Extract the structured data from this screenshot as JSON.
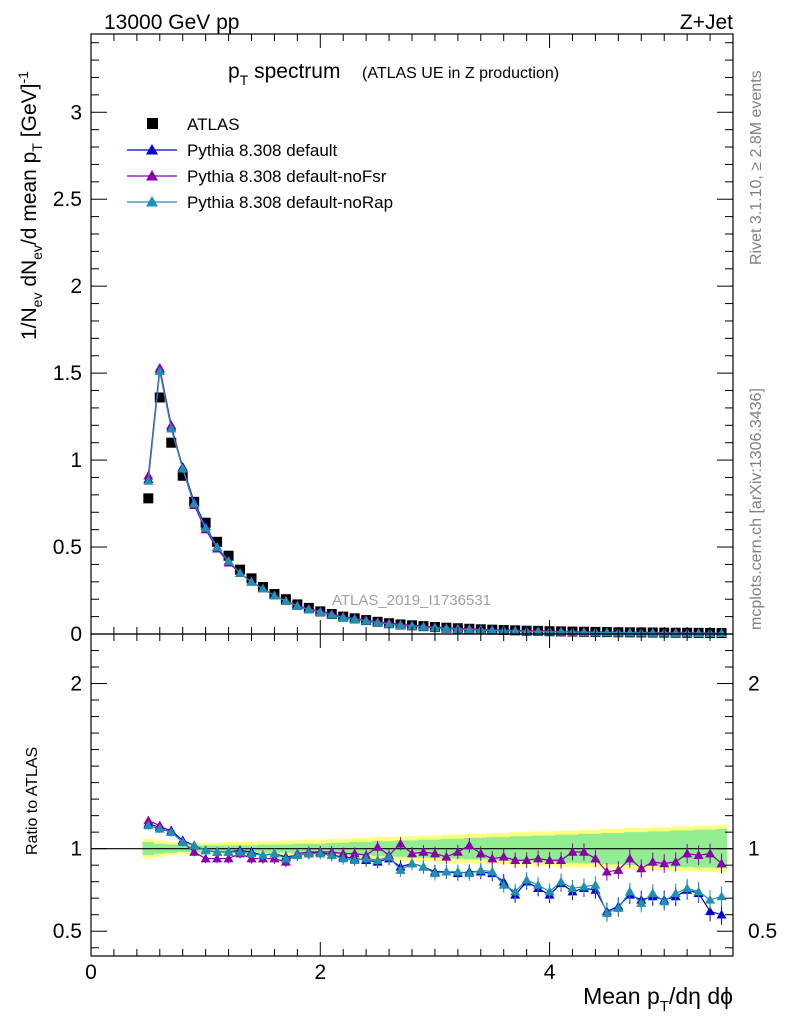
{
  "header": {
    "left": "13000 GeV pp",
    "right": "Z+Jet"
  },
  "side_labels": {
    "rivet": "Rivet 3.1.10, ≥ 2.8M events",
    "mcplots": "mcplots.cern.ch [arXiv:1306.3436]"
  },
  "chart_data": {
    "type": "scatter",
    "title_main": "p",
    "title_main_sub": "T",
    "title_main_rest": " spectrum",
    "title_sub": "(ATLAS UE in Z production)",
    "watermark": "ATLAS_2019_I1736531",
    "xlabel_parts": [
      "Mean p",
      "T",
      "/dη dϕ"
    ],
    "ylabel_parts": [
      "1/N",
      "ev",
      " dN",
      "ev",
      "/d mean p",
      "T",
      " [GeV]",
      "-1"
    ],
    "ratio_ylabel": "Ratio to ATLAS",
    "xlim": [
      0,
      5.6
    ],
    "ylim": [
      0,
      3.45
    ],
    "ratio_ylim": [
      0.35,
      2.3
    ],
    "x_ticks": [
      "0",
      "2",
      "4"
    ],
    "y_ticks": [
      "0",
      "0.5",
      "1",
      "1.5",
      "2",
      "2.5",
      "3"
    ],
    "ratio_y_ticks": [
      "0.5",
      "1",
      "2"
    ],
    "legend_position": "top-left",
    "x": [
      0.5,
      0.6,
      0.7,
      0.8,
      0.9,
      1.0,
      1.1,
      1.2,
      1.3,
      1.4,
      1.5,
      1.6,
      1.7,
      1.8,
      1.9,
      2.0,
      2.1,
      2.2,
      2.3,
      2.4,
      2.5,
      2.6,
      2.7,
      2.8,
      2.9,
      3.0,
      3.1,
      3.2,
      3.3,
      3.4,
      3.5,
      3.6,
      3.7,
      3.8,
      3.9,
      4.0,
      4.1,
      4.2,
      4.3,
      4.4,
      4.5,
      4.6,
      4.7,
      4.8,
      4.9,
      5.0,
      5.1,
      5.2,
      5.3,
      5.4,
      5.5
    ],
    "series": [
      {
        "name": "ATLAS",
        "color": "#000000",
        "marker": "square",
        "values": [
          0.78,
          1.36,
          1.1,
          0.91,
          0.76,
          0.64,
          0.53,
          0.45,
          0.37,
          0.32,
          0.27,
          0.23,
          0.2,
          0.17,
          0.15,
          0.13,
          0.115,
          0.1,
          0.09,
          0.08,
          0.07,
          0.062,
          0.055,
          0.05,
          0.045,
          0.04,
          0.036,
          0.033,
          0.03,
          0.027,
          0.025,
          0.023,
          0.021,
          0.019,
          0.018,
          0.016,
          0.015,
          0.014,
          0.013,
          0.012,
          0.011,
          0.01,
          0.0095,
          0.009,
          0.0085,
          0.008,
          0.0075,
          0.007,
          0.0065,
          0.006,
          0.0055
        ],
        "ratio": []
      },
      {
        "name": "Pythia 8.308 default",
        "color": "#0000cc",
        "marker": "triangle",
        "values": [
          0.89,
          1.52,
          1.19,
          0.96,
          0.76,
          0.62,
          0.5,
          0.42,
          0.35,
          0.3,
          0.26,
          0.22,
          0.19,
          0.16,
          0.14,
          0.125,
          0.11,
          0.095,
          0.085,
          0.075,
          0.065,
          0.057,
          0.05,
          0.045,
          0.04,
          0.035,
          0.031,
          0.028,
          0.026,
          0.023,
          0.021,
          0.019,
          0.017,
          0.015,
          0.014,
          0.013,
          0.012,
          0.011,
          0.01,
          0.009,
          0.008,
          0.0075,
          0.007,
          0.0065,
          0.006,
          0.0055,
          0.005,
          0.0048,
          0.0045,
          0.0042,
          0.004
        ],
        "ratio": [
          1.15,
          1.13,
          1.11,
          1.05,
          1.02,
          0.99,
          0.98,
          0.98,
          0.99,
          0.98,
          0.96,
          0.97,
          0.95,
          0.96,
          0.97,
          0.98,
          0.96,
          0.95,
          0.94,
          0.93,
          0.92,
          0.94,
          0.89,
          0.91,
          0.89,
          0.86,
          0.86,
          0.85,
          0.86,
          0.86,
          0.85,
          0.8,
          0.72,
          0.8,
          0.76,
          0.72,
          0.79,
          0.74,
          0.76,
          0.75,
          0.62,
          0.65,
          0.72,
          0.69,
          0.71,
          0.69,
          0.71,
          0.75,
          0.73,
          0.62,
          0.6
        ]
      },
      {
        "name": "Pythia 8.308 default-noFsr",
        "color": "#8800aa",
        "marker": "triangle",
        "values": [
          0.91,
          1.53,
          1.2,
          0.95,
          0.74,
          0.6,
          0.49,
          0.41,
          0.35,
          0.3,
          0.26,
          0.22,
          0.19,
          0.165,
          0.145,
          0.13,
          0.115,
          0.1,
          0.09,
          0.08,
          0.07,
          0.063,
          0.056,
          0.05,
          0.045,
          0.04,
          0.036,
          0.033,
          0.03,
          0.027,
          0.025,
          0.023,
          0.021,
          0.019,
          0.018,
          0.016,
          0.015,
          0.014,
          0.013,
          0.012,
          0.011,
          0.01,
          0.0095,
          0.009,
          0.0085,
          0.008,
          0.0075,
          0.007,
          0.0065,
          0.006,
          0.0055
        ],
        "ratio": [
          1.17,
          1.14,
          1.1,
          1.04,
          0.98,
          0.94,
          0.94,
          0.94,
          0.97,
          0.94,
          0.94,
          0.94,
          0.92,
          0.97,
          0.98,
          0.98,
          0.98,
          0.97,
          0.97,
          0.96,
          1.01,
          0.96,
          1.03,
          0.97,
          0.98,
          0.97,
          0.95,
          0.98,
          1.02,
          0.97,
          0.94,
          0.95,
          0.93,
          0.93,
          0.94,
          0.93,
          0.93,
          0.98,
          0.98,
          0.94,
          0.86,
          0.87,
          0.94,
          0.88,
          0.92,
          0.91,
          0.92,
          0.97,
          0.96,
          0.97,
          0.91
        ]
      },
      {
        "name": "Pythia 8.308 default-noRap",
        "color": "#2090b0",
        "marker": "triangle",
        "values": [
          0.88,
          1.51,
          1.18,
          0.95,
          0.75,
          0.61,
          0.5,
          0.42,
          0.35,
          0.3,
          0.26,
          0.22,
          0.19,
          0.16,
          0.14,
          0.125,
          0.11,
          0.095,
          0.085,
          0.075,
          0.065,
          0.057,
          0.05,
          0.045,
          0.04,
          0.035,
          0.031,
          0.028,
          0.026,
          0.023,
          0.021,
          0.019,
          0.017,
          0.015,
          0.014,
          0.013,
          0.012,
          0.011,
          0.01,
          0.009,
          0.008,
          0.0075,
          0.007,
          0.0065,
          0.006,
          0.0055,
          0.005,
          0.0048,
          0.0045,
          0.0042,
          0.004
        ],
        "ratio": [
          1.14,
          1.12,
          1.1,
          1.04,
          1.02,
          0.99,
          0.98,
          0.98,
          0.98,
          0.97,
          0.96,
          0.97,
          0.94,
          0.96,
          0.97,
          0.97,
          0.96,
          0.94,
          0.93,
          0.94,
          0.93,
          0.95,
          0.87,
          0.91,
          0.89,
          0.85,
          0.86,
          0.86,
          0.85,
          0.87,
          0.86,
          0.78,
          0.74,
          0.81,
          0.78,
          0.74,
          0.8,
          0.76,
          0.77,
          0.78,
          0.61,
          0.64,
          0.74,
          0.67,
          0.73,
          0.68,
          0.73,
          0.76,
          0.74,
          0.69,
          0.71
        ]
      }
    ],
    "band_inner": {
      "color": "#90ee90",
      "halfwidth": [
        0.04,
        0.03,
        0.025,
        0.02,
        0.02,
        0.02,
        0.02,
        0.02,
        0.02,
        0.02,
        0.025,
        0.025,
        0.025,
        0.03,
        0.03,
        0.03,
        0.035,
        0.035,
        0.04,
        0.04,
        0.045,
        0.045,
        0.05,
        0.05,
        0.055,
        0.055,
        0.06,
        0.06,
        0.065,
        0.065,
        0.07,
        0.07,
        0.075,
        0.075,
        0.08,
        0.08,
        0.085,
        0.085,
        0.09,
        0.09,
        0.095,
        0.095,
        0.1,
        0.1,
        0.105,
        0.105,
        0.11,
        0.11,
        0.115,
        0.115,
        0.12
      ]
    },
    "band_outer": {
      "color": "#ffff80",
      "halfwidth": [
        0.06,
        0.05,
        0.04,
        0.035,
        0.035,
        0.035,
        0.035,
        0.04,
        0.04,
        0.04,
        0.045,
        0.045,
        0.05,
        0.05,
        0.055,
        0.055,
        0.06,
        0.06,
        0.065,
        0.065,
        0.07,
        0.07,
        0.075,
        0.075,
        0.08,
        0.08,
        0.085,
        0.085,
        0.09,
        0.09,
        0.095,
        0.095,
        0.1,
        0.1,
        0.105,
        0.105,
        0.11,
        0.11,
        0.115,
        0.115,
        0.12,
        0.12,
        0.125,
        0.125,
        0.13,
        0.13,
        0.135,
        0.135,
        0.14,
        0.14,
        0.145
      ]
    }
  }
}
